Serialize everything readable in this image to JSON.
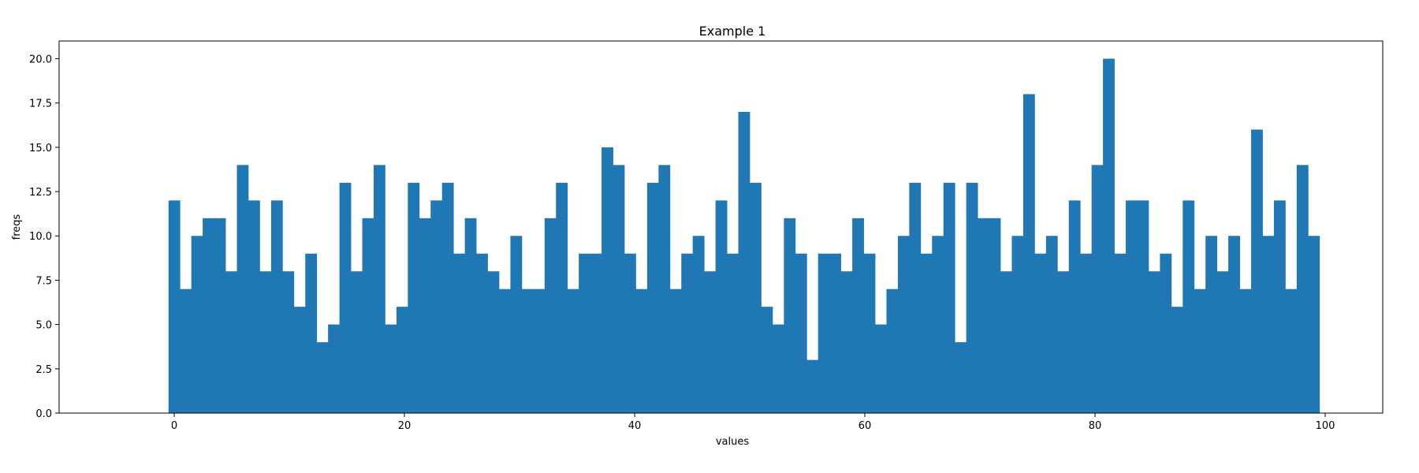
{
  "chart_data": {
    "type": "bar",
    "title": "Example 1",
    "xlabel": "values",
    "ylabel": "freqs",
    "x": [
      0,
      1,
      2,
      3,
      4,
      5,
      6,
      7,
      8,
      9,
      10,
      11,
      12,
      13,
      14,
      15,
      16,
      17,
      18,
      19,
      20,
      21,
      22,
      23,
      24,
      25,
      26,
      27,
      28,
      29,
      30,
      31,
      32,
      33,
      34,
      35,
      36,
      37,
      38,
      39,
      40,
      41,
      42,
      43,
      44,
      45,
      46,
      47,
      48,
      49,
      50,
      51,
      52,
      53,
      54,
      55,
      56,
      57,
      58,
      59,
      60,
      61,
      62,
      63,
      64,
      65,
      66,
      67,
      68,
      69,
      70,
      71,
      72,
      73,
      74,
      75,
      76,
      77,
      78,
      79,
      80,
      81,
      82,
      83,
      84,
      85,
      86,
      87,
      88,
      89,
      90,
      91,
      92,
      93,
      94,
      95,
      96,
      97,
      98,
      99,
      100
    ],
    "values": [
      12,
      7,
      10,
      11,
      11,
      8,
      14,
      12,
      8,
      12,
      8,
      6,
      9,
      4,
      5,
      13,
      8,
      11,
      14,
      5,
      6,
      13,
      11,
      12,
      13,
      9,
      11,
      9,
      8,
      7,
      10,
      7,
      7,
      11,
      13,
      7,
      9,
      9,
      15,
      14,
      9,
      7,
      13,
      14,
      7,
      9,
      10,
      8,
      12,
      9,
      17,
      13,
      6,
      5,
      11,
      9,
      3,
      9,
      9,
      8,
      11,
      9,
      5,
      7,
      10,
      13,
      9,
      10,
      13,
      4,
      13,
      11,
      11,
      8,
      10,
      18,
      9,
      10,
      8,
      12,
      9,
      14,
      20,
      9,
      12,
      12,
      8,
      9,
      6,
      12,
      7,
      10,
      8,
      10,
      7,
      16,
      10,
      12,
      7,
      14,
      10
    ],
    "xlim": [
      -10,
      105
    ],
    "ylim": [
      0,
      21
    ],
    "x_ticks": [
      0,
      20,
      40,
      60,
      80,
      100
    ],
    "x_tick_labels": [
      "0",
      "20",
      "40",
      "60",
      "80",
      "100"
    ],
    "y_ticks": [
      0,
      2.5,
      5,
      7.5,
      10,
      12.5,
      15,
      17.5,
      20
    ],
    "y_tick_labels": [
      "0.0",
      "2.5",
      "5.0",
      "7.5",
      "10.0",
      "12.5",
      "15.0",
      "17.5",
      "20.0"
    ],
    "bar_color": "#1f77b4",
    "grid": false,
    "legend": "none"
  }
}
